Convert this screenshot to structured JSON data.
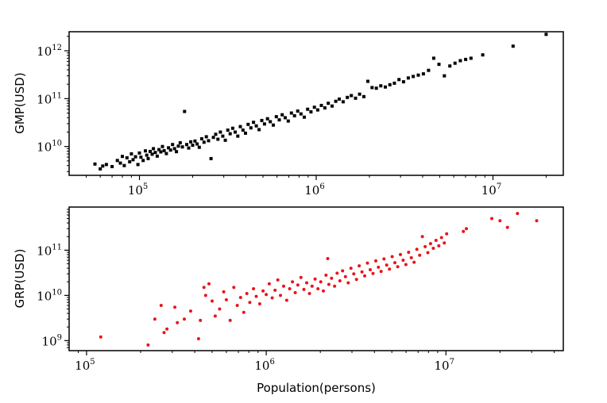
{
  "chart_data": [
    {
      "type": "scatter",
      "ylabel": "GMP(USD)",
      "xlabel": "",
      "x_scale": "log",
      "y_scale": "log",
      "xlim": [
        40000,
        25000000
      ],
      "ylim": [
        2500000000,
        2500000000000
      ],
      "x_ticks": [
        100000,
        1000000,
        10000000
      ],
      "x_tick_labels": [
        {
          "base": "10",
          "exp": "5"
        },
        {
          "base": "10",
          "exp": "6"
        },
        {
          "base": "10",
          "exp": "7"
        }
      ],
      "y_ticks": [
        10000000000,
        100000000000,
        1000000000000
      ],
      "y_tick_labels": [
        {
          "base": "10",
          "exp": "10"
        },
        {
          "base": "10",
          "exp": "11"
        },
        {
          "base": "10",
          "exp": "12"
        }
      ],
      "marker": "square",
      "color": "#000000",
      "points": [
        [
          56000,
          4300000000
        ],
        [
          60000,
          3400000000
        ],
        [
          62000,
          3900000000
        ],
        [
          65000,
          4200000000
        ],
        [
          70000,
          3800000000
        ],
        [
          75000,
          5100000000
        ],
        [
          78000,
          4500000000
        ],
        [
          80000,
          6200000000
        ],
        [
          82000,
          4000000000
        ],
        [
          85000,
          5800000000
        ],
        [
          88000,
          4800000000
        ],
        [
          90000,
          7000000000
        ],
        [
          92000,
          5300000000
        ],
        [
          95000,
          6100000000
        ],
        [
          98000,
          4200000000
        ],
        [
          100000,
          7300000000
        ],
        [
          102000,
          6000000000
        ],
        [
          105000,
          5100000000
        ],
        [
          108000,
          8100000000
        ],
        [
          110000,
          6600000000
        ],
        [
          112000,
          5600000000
        ],
        [
          115000,
          7900000000
        ],
        [
          118000,
          6900000000
        ],
        [
          120000,
          9000000000
        ],
        [
          123000,
          7500000000
        ],
        [
          126000,
          6300000000
        ],
        [
          129000,
          8600000000
        ],
        [
          132000,
          7700000000
        ],
        [
          135000,
          10000000000
        ],
        [
          138000,
          8200000000
        ],
        [
          142000,
          7100000000
        ],
        [
          146000,
          9400000000
        ],
        [
          150000,
          8400000000
        ],
        [
          154000,
          11000000000
        ],
        [
          158000,
          9000000000
        ],
        [
          162000,
          7800000000
        ],
        [
          166000,
          10200000000
        ],
        [
          170000,
          12000000000
        ],
        [
          175000,
          9800000000
        ],
        [
          180000,
          54000000000
        ],
        [
          185000,
          11000000000
        ],
        [
          190000,
          9300000000
        ],
        [
          195000,
          12500000000
        ],
        [
          200000,
          10600000000
        ],
        [
          206000,
          13000000000
        ],
        [
          212000,
          11300000000
        ],
        [
          218000,
          9600000000
        ],
        [
          225000,
          14500000000
        ],
        [
          232000,
          12300000000
        ],
        [
          239000,
          16000000000
        ],
        [
          246000,
          13200000000
        ],
        [
          254000,
          5600000000
        ],
        [
          262000,
          15500000000
        ],
        [
          270000,
          18000000000
        ],
        [
          278000,
          14200000000
        ],
        [
          287000,
          20000000000
        ],
        [
          296000,
          16500000000
        ],
        [
          306000,
          13500000000
        ],
        [
          316000,
          22000000000
        ],
        [
          326000,
          18500000000
        ],
        [
          337000,
          24000000000
        ],
        [
          348000,
          20000000000
        ],
        [
          360000,
          16500000000
        ],
        [
          372000,
          26000000000
        ],
        [
          385000,
          22000000000
        ],
        [
          398000,
          19000000000
        ],
        [
          412000,
          29000000000
        ],
        [
          427000,
          24500000000
        ],
        [
          442000,
          32000000000
        ],
        [
          458000,
          27000000000
        ],
        [
          475000,
          22500000000
        ],
        [
          492000,
          35000000000
        ],
        [
          510000,
          29500000000
        ],
        [
          530000,
          38000000000
        ],
        [
          550000,
          33000000000
        ],
        [
          572000,
          28000000000
        ],
        [
          595000,
          42000000000
        ],
        [
          618000,
          36000000000
        ],
        [
          642000,
          46000000000
        ],
        [
          668000,
          40000000000
        ],
        [
          695000,
          34000000000
        ],
        [
          724000,
          50000000000
        ],
        [
          754000,
          44000000000
        ],
        [
          786000,
          55000000000
        ],
        [
          820000,
          48000000000
        ],
        [
          856000,
          41000000000
        ],
        [
          894000,
          60000000000
        ],
        [
          934000,
          53000000000
        ],
        [
          976000,
          66000000000
        ],
        [
          1020000,
          58000000000
        ],
        [
          1070000,
          72000000000
        ],
        [
          1120000,
          64000000000
        ],
        [
          1170000,
          80000000000
        ],
        [
          1230000,
          70000000000
        ],
        [
          1290000,
          88000000000
        ],
        [
          1350000,
          98000000000
        ],
        [
          1420000,
          86000000000
        ],
        [
          1500000,
          106000000000
        ],
        [
          1580000,
          116000000000
        ],
        [
          1670000,
          102000000000
        ],
        [
          1760000,
          124000000000
        ],
        [
          1860000,
          110000000000
        ],
        [
          1960000,
          230000000000
        ],
        [
          2070000,
          170000000000
        ],
        [
          2190000,
          165000000000
        ],
        [
          2320000,
          185000000000
        ],
        [
          2460000,
          175000000000
        ],
        [
          2610000,
          195000000000
        ],
        [
          2770000,
          210000000000
        ],
        [
          2940000,
          250000000000
        ],
        [
          3120000,
          225000000000
        ],
        [
          3320000,
          270000000000
        ],
        [
          3540000,
          290000000000
        ],
        [
          3780000,
          310000000000
        ],
        [
          4040000,
          330000000000
        ],
        [
          4320000,
          390000000000
        ],
        [
          4620000,
          700000000000
        ],
        [
          4950000,
          520000000000
        ],
        [
          5310000,
          300000000000
        ],
        [
          5700000,
          480000000000
        ],
        [
          6100000,
          550000000000
        ],
        [
          6540000,
          620000000000
        ],
        [
          7010000,
          660000000000
        ],
        [
          7510000,
          700000000000
        ],
        [
          8750000,
          820000000000
        ],
        [
          13000000,
          1250000000000
        ],
        [
          20000000,
          2200000000000
        ]
      ]
    },
    {
      "type": "scatter",
      "ylabel": "GRP(USD)",
      "xlabel": "Population(persons)",
      "x_scale": "log",
      "y_scale": "log",
      "xlim": [
        80000,
        45000000
      ],
      "ylim": [
        600000000,
        900000000000
      ],
      "x_ticks": [
        100000,
        1000000,
        10000000
      ],
      "x_tick_labels": [
        {
          "base": "10",
          "exp": "5"
        },
        {
          "base": "10",
          "exp": "6"
        },
        {
          "base": "10",
          "exp": "7"
        }
      ],
      "y_ticks": [
        1000000000,
        10000000000,
        100000000000
      ],
      "y_tick_labels": [
        {
          "base": "10",
          "exp": "9"
        },
        {
          "base": "10",
          "exp": "10"
        },
        {
          "base": "10",
          "exp": "11"
        }
      ],
      "marker": "circle",
      "color": "#e8151b",
      "points": [
        [
          120000,
          1200000000
        ],
        [
          220000,
          800000000
        ],
        [
          240000,
          3000000000
        ],
        [
          260000,
          6000000000
        ],
        [
          270000,
          1500000000
        ],
        [
          280000,
          1800000000
        ],
        [
          310000,
          5500000000
        ],
        [
          320000,
          2500000000
        ],
        [
          350000,
          3000000000
        ],
        [
          380000,
          4500000000
        ],
        [
          420000,
          1100000000
        ],
        [
          430000,
          2800000000
        ],
        [
          450000,
          15000000000
        ],
        [
          460000,
          10000000000
        ],
        [
          480000,
          18000000000
        ],
        [
          500000,
          7500000000
        ],
        [
          520000,
          3500000000
        ],
        [
          550000,
          5000000000
        ],
        [
          580000,
          12000000000
        ],
        [
          600000,
          8000000000
        ],
        [
          630000,
          2800000000
        ],
        [
          660000,
          15000000000
        ],
        [
          690000,
          6000000000
        ],
        [
          720000,
          9000000000
        ],
        [
          750000,
          4200000000
        ],
        [
          780000,
          11000000000
        ],
        [
          810000,
          7000000000
        ],
        [
          850000,
          14000000000
        ],
        [
          880000,
          9500000000
        ],
        [
          920000,
          6500000000
        ],
        [
          960000,
          12500000000
        ],
        [
          1000000,
          10500000000
        ],
        [
          1040000,
          18000000000
        ],
        [
          1080000,
          8800000000
        ],
        [
          1120000,
          13000000000
        ],
        [
          1160000,
          22000000000
        ],
        [
          1200000,
          10000000000
        ],
        [
          1250000,
          16000000000
        ],
        [
          1300000,
          7800000000
        ],
        [
          1350000,
          14000000000
        ],
        [
          1400000,
          20000000000
        ],
        [
          1450000,
          11500000000
        ],
        [
          1500000,
          17000000000
        ],
        [
          1560000,
          25000000000
        ],
        [
          1620000,
          13500000000
        ],
        [
          1680000,
          19000000000
        ],
        [
          1740000,
          11000000000
        ],
        [
          1800000,
          16000000000
        ],
        [
          1870000,
          23000000000
        ],
        [
          1940000,
          14000000000
        ],
        [
          2010000,
          20000000000
        ],
        [
          2080000,
          12500000000
        ],
        [
          2150000,
          28000000000
        ],
        [
          2200000,
          65000000000
        ],
        [
          2230000,
          17500000000
        ],
        [
          2310000,
          24000000000
        ],
        [
          2400000,
          16000000000
        ],
        [
          2480000,
          31000000000
        ],
        [
          2570000,
          21000000000
        ],
        [
          2660000,
          35000000000
        ],
        [
          2760000,
          26000000000
        ],
        [
          2860000,
          19000000000
        ],
        [
          2960000,
          40000000000
        ],
        [
          3070000,
          30000000000
        ],
        [
          3180000,
          22500000000
        ],
        [
          3290000,
          45000000000
        ],
        [
          3410000,
          33000000000
        ],
        [
          3530000,
          27000000000
        ],
        [
          3660000,
          52000000000
        ],
        [
          3790000,
          37000000000
        ],
        [
          3930000,
          30500000000
        ],
        [
          4070000,
          58000000000
        ],
        [
          4210000,
          42000000000
        ],
        [
          4360000,
          34000000000
        ],
        [
          4520000,
          64000000000
        ],
        [
          4680000,
          47000000000
        ],
        [
          4850000,
          38000000000
        ],
        [
          5020000,
          72000000000
        ],
        [
          5200000,
          53000000000
        ],
        [
          5390000,
          43000000000
        ],
        [
          5580000,
          80000000000
        ],
        [
          5780000,
          60000000000
        ],
        [
          5990000,
          48000000000
        ],
        [
          6200000,
          90000000000
        ],
        [
          6420000,
          68000000000
        ],
        [
          6650000,
          54000000000
        ],
        [
          6890000,
          105000000000
        ],
        [
          7140000,
          77000000000
        ],
        [
          7390000,
          200000000000
        ],
        [
          7660000,
          120000000000
        ],
        [
          7930000,
          88000000000
        ],
        [
          8210000,
          140000000000
        ],
        [
          8510000,
          110000000000
        ],
        [
          8810000,
          165000000000
        ],
        [
          9130000,
          125000000000
        ],
        [
          9450000,
          190000000000
        ],
        [
          9790000,
          145000000000
        ],
        [
          10100000,
          230000000000
        ],
        [
          12500000,
          260000000000
        ],
        [
          13000000,
          300000000000
        ],
        [
          18000000,
          500000000000
        ],
        [
          20000000,
          450000000000
        ],
        [
          22000000,
          320000000000
        ],
        [
          25000000,
          650000000000
        ],
        [
          32000000,
          450000000000
        ]
      ]
    }
  ]
}
